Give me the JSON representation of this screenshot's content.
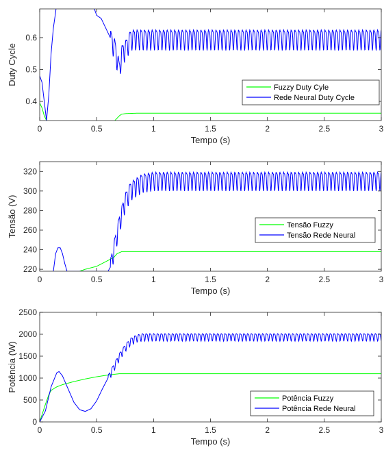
{
  "chart_data": [
    {
      "type": "line",
      "xlabel": "Tempo (s)",
      "ylabel": "Duty Cycle",
      "xlim": [
        0,
        3
      ],
      "ylim": [
        0.34,
        0.69
      ],
      "xticks": [
        "0",
        "0.5",
        "1",
        "1.5",
        "2",
        "2.5",
        "3"
      ],
      "yticks": [
        "0.4",
        "0.5",
        "0.6"
      ],
      "ytick_values": [
        0.4,
        0.5,
        0.6
      ],
      "legend_position": "right",
      "series": [
        {
          "name": "Fuzzy Duty Cyle",
          "color": "#00ff00",
          "x": [
            0,
            0.02,
            0.04,
            0.06,
            0.08,
            0.62,
            0.66,
            0.7,
            0.72,
            0.76,
            0.85,
            1.0,
            3.0
          ],
          "y": [
            0.395,
            0.38,
            0.355,
            0.34,
            0.32,
            0.32,
            0.34,
            0.355,
            0.36,
            0.362,
            0.363,
            0.363,
            0.363
          ]
        },
        {
          "name": "Rede Neural Duty Cycle",
          "color": "#0000ff",
          "x": [
            0,
            0.02,
            0.04,
            0.06,
            0.08,
            0.1,
            0.12,
            0.14,
            0.16,
            0.3,
            0.45,
            0.5,
            0.54,
            0.58,
            0.62,
            0.66,
            0.7,
            0.72,
            0.76,
            0.8,
            3.0
          ],
          "y": [
            0.48,
            0.46,
            0.4,
            0.34,
            0.42,
            0.55,
            0.63,
            0.68,
            0.74,
            0.76,
            0.72,
            0.67,
            0.66,
            0.63,
            0.6,
            0.57,
            0.5,
            0.55,
            0.57,
            0.6,
            0.6
          ],
          "oscillation": {
            "start": 0.62,
            "amplitude": 0.03,
            "period": 0.033
          }
        }
      ]
    },
    {
      "type": "line",
      "xlabel": "Tempo (s)",
      "ylabel": "Tensão (V)",
      "xlim": [
        0,
        3
      ],
      "ylim": [
        218,
        330
      ],
      "xticks": [
        "0",
        "0.5",
        "1",
        "1.5",
        "2",
        "2.5",
        "3"
      ],
      "yticks": [
        "220",
        "240",
        "260",
        "280",
        "300",
        "320"
      ],
      "ytick_values": [
        220,
        240,
        260,
        280,
        300,
        320
      ],
      "legend_position": "right",
      "series": [
        {
          "name": "Tensão Fuzzy",
          "color": "#00ff00",
          "x": [
            0.35,
            0.4,
            0.5,
            0.55,
            0.6,
            0.65,
            0.68,
            0.72,
            0.8,
            1.0,
            3.0
          ],
          "y": [
            218,
            220,
            223,
            226,
            229,
            232,
            236,
            238,
            238,
            238,
            238
          ]
        },
        {
          "name": "Tensão Rede Neural",
          "color": "#0000ff",
          "x": [
            0.12,
            0.14,
            0.16,
            0.18,
            0.2,
            0.22,
            0.24,
            0.6,
            0.62,
            0.65,
            0.7,
            0.75,
            0.8,
            0.9,
            1.0,
            1.2,
            3.0
          ],
          "y": [
            218,
            236,
            242,
            242,
            236,
            226,
            218,
            218,
            222,
            240,
            268,
            290,
            302,
            310,
            312,
            312,
            312
          ],
          "oscillation": {
            "start": 0.62,
            "amplitude": 9,
            "period": 0.033
          }
        }
      ]
    },
    {
      "type": "line",
      "xlabel": "Tempo (s)",
      "ylabel": "Potência (W)",
      "xlim": [
        0,
        3
      ],
      "ylim": [
        0,
        2500
      ],
      "xticks": [
        "0",
        "0.5",
        "1",
        "1.5",
        "2",
        "2.5",
        "3"
      ],
      "yticks": [
        "0",
        "500",
        "1000",
        "1500",
        "2000",
        "2500"
      ],
      "ytick_values": [
        0,
        500,
        1000,
        1500,
        2000,
        2500
      ],
      "legend_position": "bottom-right",
      "series": [
        {
          "name": "Potência Fuzzy",
          "color": "#00ff00",
          "x": [
            0,
            0.05,
            0.08,
            0.1,
            0.15,
            0.2,
            0.3,
            0.4,
            0.5,
            0.6,
            0.7,
            1.0,
            3.0
          ],
          "y": [
            0,
            400,
            620,
            720,
            800,
            850,
            920,
            980,
            1030,
            1070,
            1100,
            1100,
            1100
          ]
        },
        {
          "name": "Potência Rede Neural",
          "color": "#0000ff",
          "x": [
            0,
            0.05,
            0.1,
            0.15,
            0.17,
            0.2,
            0.25,
            0.3,
            0.35,
            0.4,
            0.45,
            0.5,
            0.55,
            0.6,
            0.65,
            0.7,
            0.75,
            0.8,
            0.85,
            0.9,
            1.0,
            3.0
          ],
          "y": [
            0,
            250,
            800,
            1120,
            1150,
            1050,
            750,
            450,
            280,
            240,
            300,
            480,
            750,
            1000,
            1250,
            1500,
            1700,
            1850,
            1920,
            1950,
            1950,
            1950
          ],
          "oscillation": {
            "start": 0.6,
            "amplitude": 80,
            "period": 0.033
          }
        }
      ]
    }
  ]
}
